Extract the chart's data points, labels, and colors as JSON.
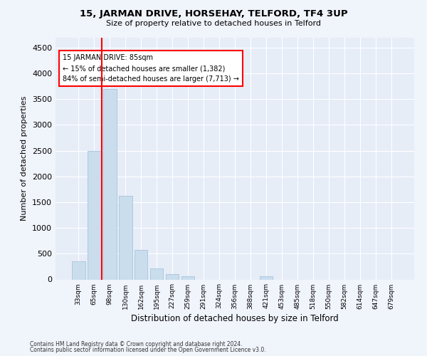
{
  "title": "15, JARMAN DRIVE, HORSEHAY, TELFORD, TF4 3UP",
  "subtitle": "Size of property relative to detached houses in Telford",
  "xlabel": "Distribution of detached houses by size in Telford",
  "ylabel": "Number of detached properties",
  "categories": [
    "33sqm",
    "65sqm",
    "98sqm",
    "130sqm",
    "162sqm",
    "195sqm",
    "227sqm",
    "259sqm",
    "291sqm",
    "324sqm",
    "356sqm",
    "388sqm",
    "421sqm",
    "453sqm",
    "485sqm",
    "518sqm",
    "550sqm",
    "582sqm",
    "614sqm",
    "647sqm",
    "679sqm"
  ],
  "values": [
    350,
    2500,
    3700,
    1620,
    580,
    220,
    100,
    60,
    0,
    0,
    0,
    0,
    60,
    0,
    0,
    0,
    0,
    0,
    0,
    0,
    0
  ],
  "bar_color": "#c9dded",
  "bar_edge_color": "#a8c4dc",
  "vline_x": 1.5,
  "vline_color": "red",
  "annotation_text": "15 JARMAN DRIVE: 85sqm\n← 15% of detached houses are smaller (1,382)\n84% of semi-detached houses are larger (7,713) →",
  "annotation_box_color": "white",
  "annotation_box_edge": "red",
  "ylim": [
    0,
    4700
  ],
  "yticks": [
    0,
    500,
    1000,
    1500,
    2000,
    2500,
    3000,
    3500,
    4000,
    4500
  ],
  "footer1": "Contains HM Land Registry data © Crown copyright and database right 2024.",
  "footer2": "Contains public sector information licensed under the Open Government Licence v3.0.",
  "bg_color": "#f0f4fb",
  "plot_bg_color": "#e6edf7"
}
